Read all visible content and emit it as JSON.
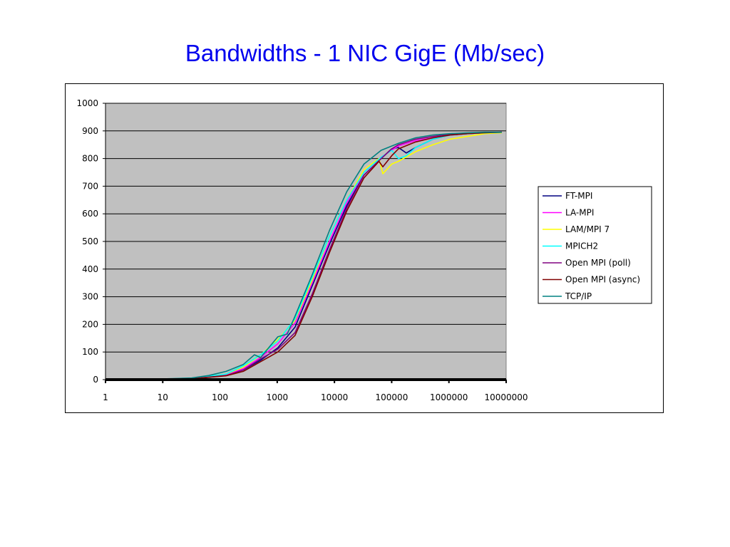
{
  "chart_data": {
    "type": "line",
    "title": "Bandwidths - 1 NIC GigE (Mb/sec)",
    "xlabel": "",
    "ylabel": "",
    "x_scale": "log",
    "xlim": [
      1,
      10000000
    ],
    "ylim": [
      0,
      1000
    ],
    "x_ticks": [
      "1",
      "10",
      "100",
      "1000",
      "10000",
      "100000",
      "1000000",
      "10000000"
    ],
    "y_ticks": [
      "0",
      "100",
      "200",
      "300",
      "400",
      "500",
      "600",
      "700",
      "800",
      "900",
      "1000"
    ],
    "grid": "horizontal",
    "plot_background": "#c0c0c0",
    "legend_position": "right",
    "series": [
      {
        "name": "FT-MPI",
        "color": "#000080",
        "x": [
          1,
          8,
          32,
          128,
          256,
          512,
          1024,
          2048,
          4096,
          8192,
          16384,
          32768,
          65536,
          100000,
          131072,
          180000,
          262144,
          524288,
          1048576,
          2097152,
          4194304,
          8388608
        ],
        "y": [
          0,
          1,
          3,
          15,
          35,
          70,
          115,
          190,
          340,
          490,
          630,
          740,
          800,
          835,
          840,
          820,
          840,
          870,
          885,
          890,
          893,
          895
        ]
      },
      {
        "name": "LA-MPI",
        "color": "#ff00ff",
        "x": [
          1,
          8,
          32,
          128,
          256,
          512,
          1024,
          2048,
          4096,
          8192,
          16384,
          32768,
          65536,
          100000,
          131072,
          262144,
          524288,
          1048576,
          2097152,
          4194304,
          8388608
        ],
        "y": [
          0,
          1,
          4,
          18,
          40,
          80,
          130,
          205,
          350,
          500,
          640,
          750,
          805,
          830,
          845,
          865,
          875,
          885,
          890,
          893,
          895
        ]
      },
      {
        "name": "LAM/MPI 7",
        "color": "#ffff00",
        "x": [
          1,
          8,
          32,
          128,
          256,
          512,
          1024,
          2048,
          4096,
          8192,
          16384,
          32768,
          60000,
          70000,
          100000,
          131072,
          262144,
          524288,
          1048576,
          2097152,
          4194304,
          8388608
        ],
        "y": [
          0,
          1,
          4,
          20,
          45,
          90,
          145,
          215,
          360,
          520,
          650,
          760,
          800,
          745,
          780,
          790,
          825,
          850,
          870,
          880,
          890,
          893
        ]
      },
      {
        "name": "MPICH2",
        "color": "#00ffff",
        "x": [
          1,
          8,
          32,
          128,
          256,
          512,
          1024,
          2048,
          4096,
          8192,
          16384,
          32768,
          65536,
          100000,
          131072,
          180000,
          262144,
          524288,
          1048576,
          2097152,
          4194304,
          8388608
        ],
        "y": [
          0,
          1,
          4,
          20,
          50,
          90,
          140,
          220,
          370,
          520,
          650,
          750,
          805,
          830,
          800,
          810,
          840,
          870,
          885,
          890,
          893,
          895
        ]
      },
      {
        "name": "Open MPI (poll)",
        "color": "#800080",
        "x": [
          1,
          8,
          32,
          128,
          256,
          512,
          1024,
          2048,
          4096,
          8192,
          16384,
          32768,
          65536,
          100000,
          131072,
          262144,
          524288,
          1048576,
          2097152,
          4194304,
          8388608
        ],
        "y": [
          0,
          1,
          3,
          15,
          35,
          75,
          110,
          170,
          310,
          470,
          620,
          740,
          800,
          835,
          850,
          870,
          880,
          888,
          892,
          894,
          895
        ]
      },
      {
        "name": "Open MPI (async)",
        "color": "#800000",
        "x": [
          1,
          8,
          32,
          128,
          256,
          512,
          1024,
          2048,
          4096,
          8192,
          16384,
          32768,
          60000,
          70000,
          100000,
          131072,
          262144,
          524288,
          1048576,
          2097152,
          4194304,
          8388608
        ],
        "y": [
          0,
          1,
          3,
          14,
          30,
          65,
          100,
          160,
          300,
          460,
          610,
          730,
          790,
          770,
          810,
          835,
          860,
          875,
          885,
          890,
          893,
          895
        ]
      },
      {
        "name": "TCP/IP",
        "color": "#008080",
        "x": [
          1,
          8,
          32,
          64,
          128,
          256,
          400,
          512,
          1024,
          1500,
          2048,
          4096,
          8192,
          16384,
          32768,
          65536,
          131072,
          262144,
          524288,
          1048576,
          2097152,
          4194304,
          8388608
        ],
        "y": [
          0,
          2,
          6,
          15,
          30,
          55,
          90,
          80,
          155,
          165,
          230,
          380,
          540,
          680,
          780,
          830,
          855,
          875,
          885,
          890,
          893,
          895,
          895
        ]
      }
    ]
  }
}
